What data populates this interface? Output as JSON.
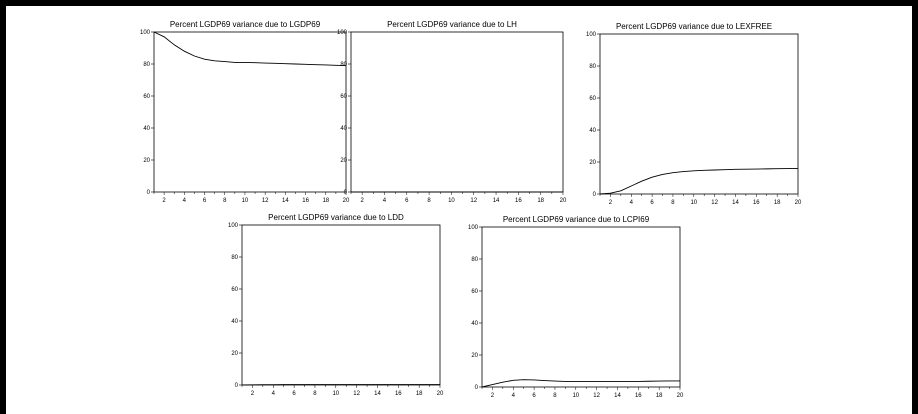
{
  "chart_data": [
    {
      "type": "line",
      "title": "Percent LGDP69 variance due to LGDP69",
      "x": [
        1,
        2,
        3,
        4,
        5,
        6,
        7,
        8,
        9,
        10,
        11,
        12,
        13,
        14,
        15,
        16,
        17,
        18,
        19,
        20
      ],
      "y": [
        100,
        97,
        92,
        88,
        85,
        83,
        82,
        81.5,
        81,
        81,
        80.8,
        80.6,
        80.4,
        80.2,
        80,
        79.8,
        79.6,
        79.4,
        79.2,
        79
      ],
      "xticks": [
        "2",
        "4",
        "6",
        "8",
        "10",
        "12",
        "14",
        "16",
        "18",
        "20"
      ],
      "yticks": [
        "0",
        "20",
        "40",
        "60",
        "80",
        "100"
      ],
      "ylim": [
        0,
        100
      ]
    },
    {
      "type": "line",
      "title": "Percent LGDP69 variance due to LH",
      "x": [
        1,
        2,
        3,
        4,
        5,
        6,
        7,
        8,
        9,
        10,
        11,
        12,
        13,
        14,
        15,
        16,
        17,
        18,
        19,
        20
      ],
      "y": [
        0,
        0,
        0,
        0,
        0,
        0,
        0,
        0,
        0,
        0,
        0,
        0,
        0,
        0,
        0,
        0,
        0,
        0,
        0,
        0
      ],
      "xticks": [
        "2",
        "4",
        "6",
        "8",
        "10",
        "12",
        "14",
        "16",
        "18",
        "20"
      ],
      "yticks": [
        "0",
        "20",
        "40",
        "60",
        "80",
        "100"
      ],
      "ylim": [
        0,
        100
      ]
    },
    {
      "type": "line",
      "title": "Percent LGDP69 variance due to LEXFREE",
      "x": [
        1,
        2,
        3,
        4,
        5,
        6,
        7,
        8,
        9,
        10,
        11,
        12,
        13,
        14,
        15,
        16,
        17,
        18,
        19,
        20
      ],
      "y": [
        0,
        0.5,
        2,
        5,
        8,
        10.5,
        12.2,
        13.3,
        14,
        14.5,
        14.8,
        15,
        15.2,
        15.4,
        15.5,
        15.6,
        15.7,
        15.8,
        15.9,
        16
      ],
      "xticks": [
        "2",
        "4",
        "6",
        "8",
        "10",
        "12",
        "14",
        "16",
        "18",
        "20"
      ],
      "yticks": [
        "0",
        "20",
        "40",
        "60",
        "80",
        "100"
      ],
      "ylim": [
        0,
        100
      ]
    },
    {
      "type": "line",
      "title": "Percent LGDP69 variance due to LDD",
      "x": [
        1,
        2,
        3,
        4,
        5,
        6,
        7,
        8,
        9,
        10,
        11,
        12,
        13,
        14,
        15,
        16,
        17,
        18,
        19,
        20
      ],
      "y": [
        0,
        0.1,
        0.2,
        0.2,
        0.3,
        0.3,
        0.3,
        0.3,
        0.3,
        0.3,
        0.3,
        0.3,
        0.3,
        0.3,
        0.3,
        0.3,
        0.3,
        0.3,
        0.3,
        0.3
      ],
      "xticks": [
        "2",
        "4",
        "6",
        "8",
        "10",
        "12",
        "14",
        "16",
        "18",
        "20"
      ],
      "yticks": [
        "0",
        "20",
        "40",
        "60",
        "80",
        "100"
      ],
      "ylim": [
        0,
        100
      ]
    },
    {
      "type": "line",
      "title": "Percent LGDP69 variance due to LCPI69",
      "x": [
        1,
        2,
        3,
        4,
        5,
        6,
        7,
        8,
        9,
        10,
        11,
        12,
        13,
        14,
        15,
        16,
        17,
        18,
        19,
        20
      ],
      "y": [
        0,
        1.5,
        3,
        4.2,
        4.6,
        4.4,
        4,
        3.7,
        3.5,
        3.4,
        3.4,
        3.4,
        3.4,
        3.4,
        3.5,
        3.5,
        3.6,
        3.7,
        3.8,
        3.8
      ],
      "xticks": [
        "2",
        "4",
        "6",
        "8",
        "10",
        "12",
        "14",
        "16",
        "18",
        "20"
      ],
      "yticks": [
        "0",
        "20",
        "40",
        "60",
        "80",
        "100"
      ],
      "ylim": [
        0,
        100
      ]
    }
  ]
}
